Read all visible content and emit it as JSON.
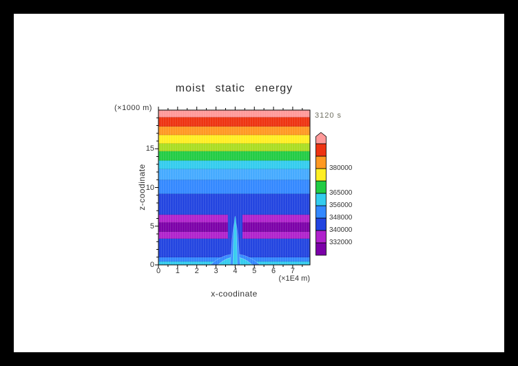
{
  "title": "moist static energy",
  "timestamp_label": "3120 s",
  "axes": {
    "y_unit_label": "(×1000 m)",
    "y_axis_label": "z-coodinate",
    "x_axis_label": "x-coodinate",
    "x_unit_label": "(×1E4 m)"
  },
  "chart_data": {
    "type": "heatmap",
    "title": "moist static energy",
    "time_label": "3120 s",
    "xlabel": "x-coodinate",
    "x_unit": "×1E4 m",
    "ylabel": "z-coodinate",
    "y_unit": "×1000 m",
    "xlim": [
      0,
      7.9
    ],
    "ylim": [
      0,
      20
    ],
    "x_ticks": [
      0,
      1,
      2,
      3,
      4,
      5,
      6,
      7
    ],
    "y_ticks": [
      0,
      5,
      10,
      15
    ],
    "x_minor_step": 0.5,
    "y_minor_step": 1,
    "grid": "fine vertical model-grid striations over filled contours",
    "legend_position": "right colorbar with overflow arrow",
    "colorbar": {
      "labels": [
        {
          "value": "332000",
          "boundary": 1
        },
        {
          "value": "340000",
          "boundary": 2
        },
        {
          "value": "348000",
          "boundary": 3
        },
        {
          "value": "356000",
          "boundary": 4
        },
        {
          "value": "365000",
          "boundary": 5
        },
        {
          "value": "380000",
          "boundary": 7
        }
      ],
      "cell_colors_bottom_to_top": [
        "#7b00a8",
        "#b022cc",
        "#2244e0",
        "#3388ff",
        "#33ccee",
        "#22cc44",
        "#ffee22",
        "#ff9922",
        "#ee3311"
      ],
      "arrow_color": "#ff9999"
    },
    "bands_bottom_to_top": [
      {
        "z0": 0.0,
        "z1": 0.45,
        "color": "#33ccee",
        "approx_value": "344000"
      },
      {
        "z0": 0.45,
        "z1": 1.0,
        "color": "#3388ff",
        "approx_value": "340000"
      },
      {
        "z0": 1.0,
        "z1": 3.4,
        "color": "#2244e0",
        "approx_value": "336000"
      },
      {
        "z0": 3.4,
        "z1": 4.3,
        "color": "#b022cc",
        "approx_value": "332000"
      },
      {
        "z0": 4.3,
        "z1": 5.5,
        "color": "#7b00a8",
        "approx_value": "below 332000 (minimum layer)"
      },
      {
        "z0": 5.5,
        "z1": 6.5,
        "color": "#b022cc",
        "approx_value": "332000"
      },
      {
        "z0": 6.5,
        "z1": 9.2,
        "color": "#2244e0",
        "approx_value": "336000"
      },
      {
        "z0": 9.2,
        "z1": 11.0,
        "color": "#3388ff",
        "approx_value": "340000"
      },
      {
        "z0": 11.0,
        "z1": 12.4,
        "color": "#44aaff",
        "approx_value": "344000"
      },
      {
        "z0": 12.4,
        "z1": 13.5,
        "color": "#33ccee",
        "approx_value": "348000"
      },
      {
        "z0": 13.5,
        "z1": 14.7,
        "color": "#22cc44",
        "approx_value": "352000"
      },
      {
        "z0": 14.7,
        "z1": 15.7,
        "color": "#aadd22",
        "approx_value": "356000"
      },
      {
        "z0": 15.7,
        "z1": 16.8,
        "color": "#ffee22",
        "approx_value": "360000"
      },
      {
        "z0": 16.8,
        "z1": 17.9,
        "color": "#ff9922",
        "approx_value": "365000"
      },
      {
        "z0": 17.9,
        "z1": 19.1,
        "color": "#ee3311",
        "approx_value": "372000"
      },
      {
        "z0": 19.1,
        "z1": 20.0,
        "color": "#ff9999",
        "approx_value": "above 380000"
      }
    ],
    "plume": {
      "x_center": 4.0,
      "description": "narrow high-energy plume perturbing the contour bands near x = 4",
      "layers": [
        {
          "shape": "notch",
          "x0": 3.62,
          "x1": 4.38,
          "z0": 3.4,
          "z1": 6.6,
          "color": "#2244e0"
        },
        {
          "shape": "bell",
          "x0": 2.7,
          "x1": 5.3,
          "peak_z": 1.4,
          "color": "#3388ff"
        },
        {
          "shape": "bell",
          "x0": 3.1,
          "x1": 4.9,
          "peak_z": 1.0,
          "color": "#33ccee"
        },
        {
          "shape": "bell",
          "x0": 3.75,
          "x1": 4.25,
          "peak_z": 5.6,
          "color": "#3388ff"
        },
        {
          "shape": "bell",
          "x0": 3.88,
          "x1": 4.12,
          "peak_z": 6.3,
          "color": "#33ccee"
        }
      ]
    }
  }
}
